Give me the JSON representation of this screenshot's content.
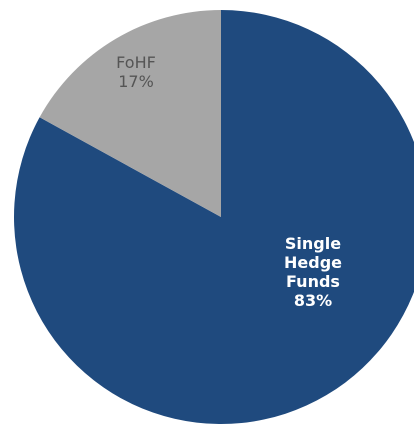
{
  "chart_data": {
    "type": "pie",
    "categories": [
      "Single Hedge Funds",
      "FoHF"
    ],
    "values": [
      83,
      17
    ],
    "value_labels": [
      "83%",
      "17%"
    ],
    "colors": [
      "#1f4a7e",
      "#a6a6a6"
    ]
  }
}
